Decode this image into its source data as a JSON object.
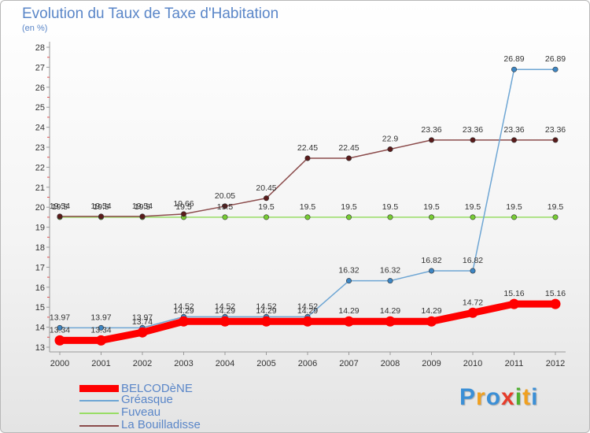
{
  "header": {
    "title": "Evolution du Taux de Taxe d'Habitation",
    "unit_label": "(en %)"
  },
  "chart_data": {
    "type": "line",
    "title": "Evolution du Taux de Taxe d'Habitation",
    "ylabel": "(en %)",
    "xlabel": "",
    "x": [
      "2000",
      "2001",
      "2002",
      "2003",
      "2004",
      "2005",
      "2006",
      "2007",
      "2008",
      "2009",
      "2010",
      "2011",
      "2012"
    ],
    "ylim": [
      13,
      28
    ],
    "yticks": [
      "13",
      "14",
      "15",
      "16",
      "17",
      "18",
      "19",
      "20",
      "21",
      "22",
      "23",
      "24",
      "25",
      "26",
      "27",
      "28"
    ],
    "grid": false,
    "legend_position": "bottom-left",
    "series": [
      {
        "name": "BELCODèNE",
        "color": "#ff0000",
        "marker_color": "#ff0000",
        "values": [
          13.34,
          13.34,
          13.74,
          14.29,
          14.29,
          14.29,
          14.29,
          14.29,
          14.29,
          14.29,
          14.72,
          15.16,
          15.16
        ],
        "labels": [
          "13.34",
          "13.34",
          "13.74",
          "14.29",
          "14.29",
          "14.29",
          "14.29",
          "14.29",
          "14.29",
          "14.29",
          "14.72",
          "15.16",
          "15.16"
        ]
      },
      {
        "name": "Gréasque",
        "color": "#6ea6d4",
        "marker_color": "#3d86c4",
        "values": [
          13.97,
          13.97,
          13.97,
          14.52,
          14.52,
          14.52,
          14.52,
          16.32,
          16.32,
          16.82,
          16.82,
          26.89,
          26.89
        ],
        "labels": [
          "13.97",
          "13.97",
          "13.97",
          "14.52",
          "14.52",
          "14.52",
          "14.52",
          "16.32",
          "16.32",
          "16.82",
          "16.82",
          "26.89",
          "26.89"
        ]
      },
      {
        "name": "Fuveau",
        "color": "#99dd66",
        "marker_color": "#77cc33",
        "values": [
          19.5,
          19.5,
          19.5,
          19.5,
          19.5,
          19.5,
          19.5,
          19.5,
          19.5,
          19.5,
          19.5,
          19.5,
          19.5
        ],
        "labels": [
          "19.5",
          "19.5",
          "19.5",
          "19.5",
          "19.5",
          "19.5",
          "19.5",
          "19.5",
          "19.5",
          "19.5",
          "19.5",
          "19.5",
          "19.5"
        ]
      },
      {
        "name": "La Bouilladisse",
        "color": "#8b4b4b",
        "marker_color": "#5a1a1a",
        "values": [
          19.54,
          19.54,
          19.54,
          19.66,
          20.05,
          20.45,
          22.45,
          22.45,
          22.9,
          23.36,
          23.36,
          23.36,
          23.36
        ],
        "labels": [
          "19.54",
          "19.54",
          "19.54",
          "19.66",
          "20.05",
          "20.45",
          "22.45",
          "22.45",
          "22.9",
          "23.36",
          "23.36",
          "23.36",
          "23.36"
        ]
      }
    ]
  },
  "logo": {
    "text": "Proxiti"
  }
}
